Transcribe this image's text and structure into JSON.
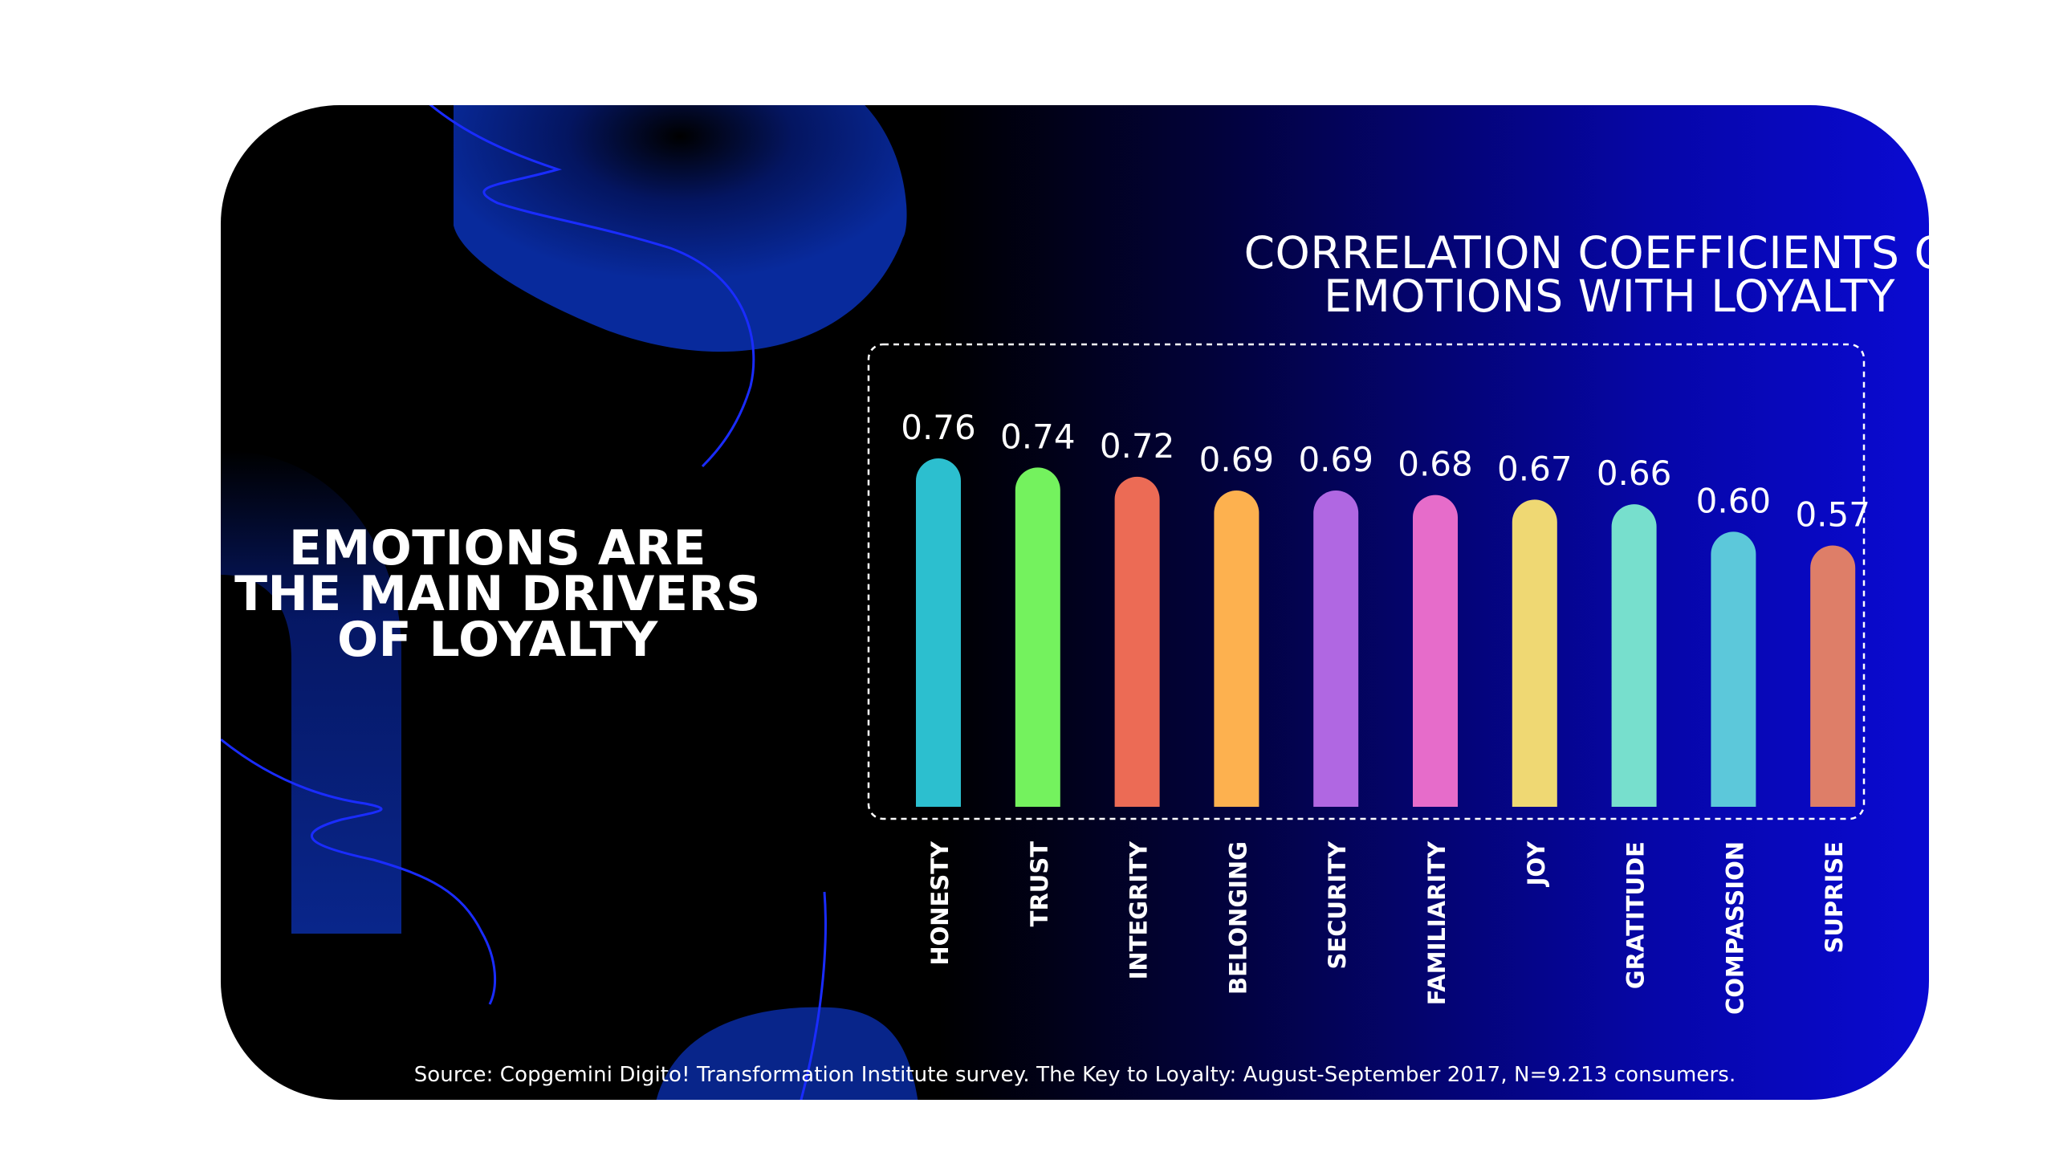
{
  "headline": {
    "lines": [
      "EMOTIONS ARE",
      "THE MAIN DRIVERS",
      "OF LOYALTY"
    ]
  },
  "source": "Source: Copgemini Digito! Transformation Institute survey. The Key to Loyalty: August-September 2017, N=9.213 consumers.",
  "chart_data": {
    "type": "bar",
    "title_lines": [
      "CORRELATION COEFFICIENTS OF",
      "EMOTIONS WITH LOYALTY"
    ],
    "categories": [
      "HONESTY",
      "TRUST",
      "INTEGRITY",
      "BELONGING",
      "SECURITY",
      "FAMILIARITY",
      "JOY",
      "GRATITUDE",
      "COMPASSION",
      "SUPRISE"
    ],
    "values": [
      0.76,
      0.74,
      0.72,
      0.69,
      0.69,
      0.68,
      0.67,
      0.66,
      0.6,
      0.57
    ],
    "value_labels": [
      "0.76",
      "0.74",
      "0.72",
      "0.69",
      "0.69",
      "0.68",
      "0.67",
      "0.66",
      "0.60",
      "0.57"
    ],
    "bar_colors": [
      "#2cbfcf",
      "#74f25e",
      "#ec6b55",
      "#fdb14f",
      "#b067e2",
      "#e66cca",
      "#efd873",
      "#77dfcd",
      "#5cc8da",
      "#de7e68"
    ],
    "xlabel": "",
    "ylabel": "",
    "axes_visible": false,
    "grid": false,
    "legend": "none"
  },
  "colors": {
    "card_dark": "#000000",
    "card_blue": "#0a0ad2",
    "accent_shape": "#0a2a9a",
    "accent_line": "#1a2cff",
    "text": "#ffffff"
  }
}
